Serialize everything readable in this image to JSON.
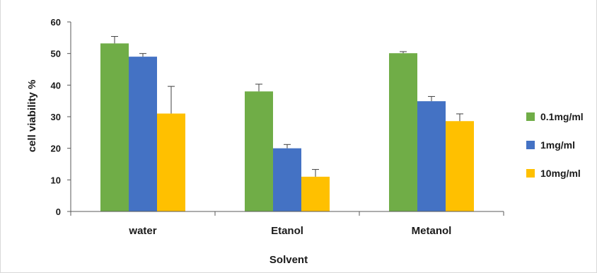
{
  "chart_data": {
    "type": "bar",
    "categories": [
      "water",
      "Etanol",
      "Metanol"
    ],
    "series": [
      {
        "name": "0.1mg/ml",
        "color": "#70ad47",
        "values": [
          53.2,
          38.0,
          50.1
        ],
        "errors": [
          2.2,
          2.3,
          0.5
        ]
      },
      {
        "name": "1mg/ml",
        "color": "#4472c4",
        "values": [
          49.0,
          20.0,
          34.9
        ],
        "errors": [
          1.0,
          1.2,
          1.5
        ]
      },
      {
        "name": "10mg/ml",
        "color": "#ffc000",
        "values": [
          31.0,
          11.0,
          28.6
        ],
        "errors": [
          8.6,
          2.3,
          2.3
        ]
      }
    ],
    "xlabel": "Solvent",
    "ylabel": "cell viability %",
    "ylim": [
      0,
      60
    ],
    "yticks": [
      0,
      10,
      20,
      30,
      40,
      50,
      60
    ],
    "legend_position": "right",
    "grid": false
  }
}
